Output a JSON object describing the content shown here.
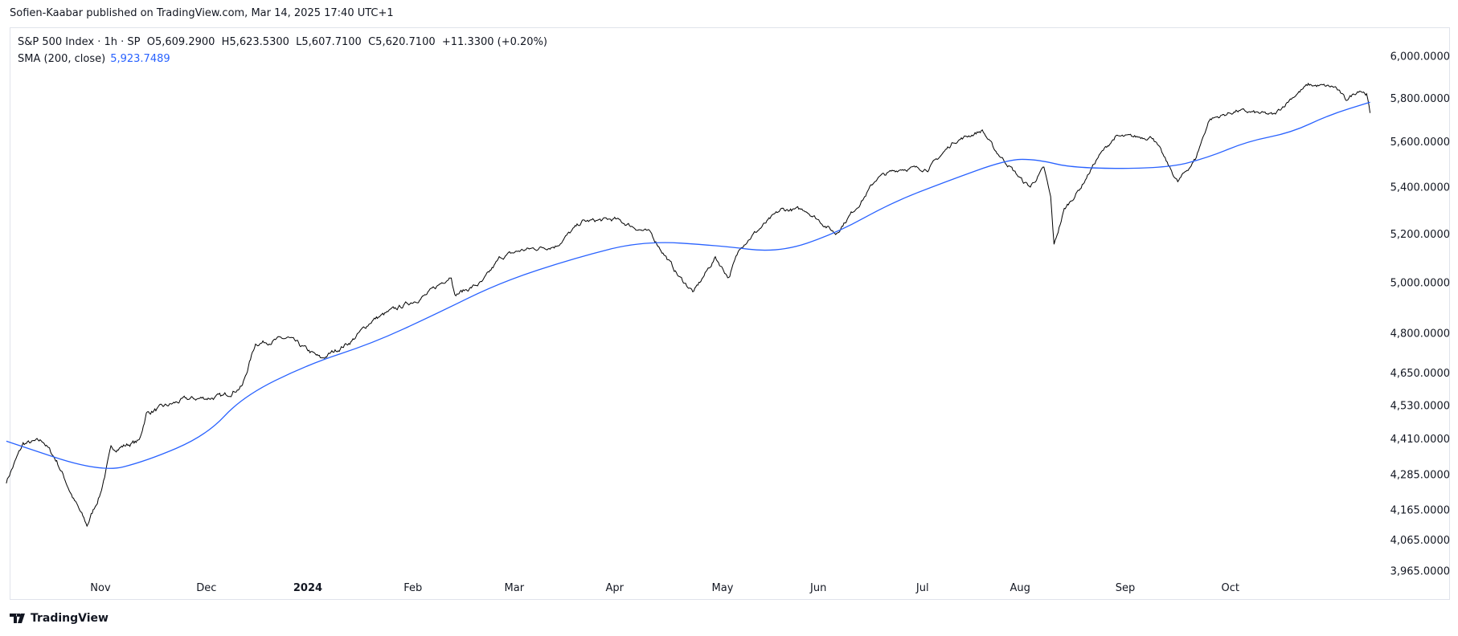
{
  "publisher_line": "Sofien-Kaabar published on TradingView.com, Mar 14, 2025 17:40 UTC+1",
  "legend": {
    "symbol_line": "S&P 500 Index · 1h · SP  O5,609.2900  H5,623.5300  L5,607.7100  C5,620.7100  +11.3300 (+0.20%)",
    "sma_label": "SMA (200, close)",
    "sma_value": "5,923.7489"
  },
  "brand": "TradingView",
  "colors": {
    "price": "#000000",
    "sma": "#2962ff",
    "border": "#e0e3eb"
  },
  "chart_data": {
    "type": "line",
    "scale": "log",
    "grid": false,
    "ylim": [
      3965,
      6000
    ],
    "y_ticks": [
      "6,000.0000",
      "5,800.0000",
      "5,600.0000",
      "5,400.0000",
      "5,200.0000",
      "5,000.0000",
      "4,800.0000",
      "4,650.0000",
      "4,530.0000",
      "4,410.0000",
      "4,285.0000",
      "4,165.0000",
      "4,065.0000",
      "3,965.0000"
    ],
    "x_ticks": [
      {
        "label": "Nov",
        "date": "2023-11-01"
      },
      {
        "label": "Dec",
        "date": "2023-12-01"
      },
      {
        "label": "2024",
        "date": "2024-01-01",
        "year": true
      },
      {
        "label": "Feb",
        "date": "2024-02-01"
      },
      {
        "label": "Mar",
        "date": "2024-03-01"
      },
      {
        "label": "Apr",
        "date": "2024-04-01"
      },
      {
        "label": "May",
        "date": "2024-05-01"
      },
      {
        "label": "Jun",
        "date": "2024-06-01"
      },
      {
        "label": "Jul",
        "date": "2024-07-01"
      },
      {
        "label": "Aug",
        "date": "2024-08-01"
      },
      {
        "label": "Sep",
        "date": "2024-09-01"
      },
      {
        "label": "Oct",
        "date": "2024-10-01"
      }
    ],
    "series": [
      {
        "name": "S&P 500 Index",
        "points": [
          [
            "2023-10-04",
            4260
          ],
          [
            "2023-10-09",
            4390
          ],
          [
            "2023-10-15",
            4400
          ],
          [
            "2023-10-19",
            4330
          ],
          [
            "2023-10-24",
            4200
          ],
          [
            "2023-10-28",
            4110
          ],
          [
            "2023-11-01",
            4220
          ],
          [
            "2023-11-04",
            4370
          ],
          [
            "2023-11-12",
            4400
          ],
          [
            "2023-11-14",
            4500
          ],
          [
            "2023-11-25",
            4550
          ],
          [
            "2023-12-06",
            4560
          ],
          [
            "2023-12-12",
            4600
          ],
          [
            "2023-12-16",
            4760
          ],
          [
            "2023-12-26",
            4780
          ],
          [
            "2024-01-05",
            4700
          ],
          [
            "2024-01-14",
            4770
          ],
          [
            "2024-01-20",
            4850
          ],
          [
            "2024-01-28",
            4900
          ],
          [
            "2024-02-05",
            4950
          ],
          [
            "2024-02-12",
            5030
          ],
          [
            "2024-02-13",
            4950
          ],
          [
            "2024-02-21",
            5000
          ],
          [
            "2024-02-26",
            5100
          ],
          [
            "2024-03-03",
            5130
          ],
          [
            "2024-03-14",
            5150
          ],
          [
            "2024-03-22",
            5250
          ],
          [
            "2024-04-01",
            5260
          ],
          [
            "2024-04-11",
            5200
          ],
          [
            "2024-04-19",
            5020
          ],
          [
            "2024-04-23",
            4960
          ],
          [
            "2024-04-29",
            5100
          ],
          [
            "2024-05-03",
            5020
          ],
          [
            "2024-05-07",
            5150
          ],
          [
            "2024-05-13",
            5220
          ],
          [
            "2024-05-20",
            5300
          ],
          [
            "2024-05-28",
            5300
          ],
          [
            "2024-06-06",
            5200
          ],
          [
            "2024-06-14",
            5350
          ],
          [
            "2024-06-18",
            5440
          ],
          [
            "2024-06-25",
            5480
          ],
          [
            "2024-07-03",
            5480
          ],
          [
            "2024-07-11",
            5600
          ],
          [
            "2024-07-20",
            5650
          ],
          [
            "2024-07-24",
            5560
          ],
          [
            "2024-07-28",
            5500
          ],
          [
            "2024-08-02",
            5420
          ],
          [
            "2024-08-04",
            5400
          ],
          [
            "2024-08-08",
            5480
          ],
          [
            "2024-08-10",
            5350
          ],
          [
            "2024-08-11",
            5150
          ],
          [
            "2024-08-14",
            5300
          ],
          [
            "2024-08-19",
            5400
          ],
          [
            "2024-08-24",
            5530
          ],
          [
            "2024-08-29",
            5620
          ],
          [
            "2024-09-09",
            5620
          ],
          [
            "2024-09-13",
            5500
          ],
          [
            "2024-09-16",
            5420
          ],
          [
            "2024-09-21",
            5520
          ],
          [
            "2024-09-25",
            5700
          ],
          [
            "2024-10-03",
            5740
          ],
          [
            "2024-10-14",
            5720
          ],
          [
            "2024-10-19",
            5800
          ],
          [
            "2024-10-24",
            5860
          ],
          [
            "2024-11-01",
            5850
          ],
          [
            "2024-11-04",
            5790
          ],
          [
            "2024-11-08",
            5840
          ],
          [
            "2024-11-10",
            5820
          ],
          [
            "2024-11-11",
            5730
          ]
        ]
      },
      {
        "name": "SMA (200, close)",
        "points": [
          [
            "2023-10-04",
            4400
          ],
          [
            "2023-11-01",
            4290
          ],
          [
            "2023-11-14",
            4330
          ],
          [
            "2023-12-01",
            4420
          ],
          [
            "2023-12-12",
            4560
          ],
          [
            "2024-01-01",
            4680
          ],
          [
            "2024-01-20",
            4760
          ],
          [
            "2024-02-07",
            4870
          ],
          [
            "2024-02-26",
            5000
          ],
          [
            "2024-03-20",
            5100
          ],
          [
            "2024-04-09",
            5170
          ],
          [
            "2024-04-30",
            5150
          ],
          [
            "2024-05-19",
            5120
          ],
          [
            "2024-06-06",
            5200
          ],
          [
            "2024-06-22",
            5330
          ],
          [
            "2024-07-08",
            5420
          ],
          [
            "2024-07-28",
            5520
          ],
          [
            "2024-08-06",
            5520
          ],
          [
            "2024-08-17",
            5480
          ],
          [
            "2024-09-13",
            5480
          ],
          [
            "2024-09-25",
            5530
          ],
          [
            "2024-10-06",
            5600
          ],
          [
            "2024-10-19",
            5640
          ],
          [
            "2024-10-30",
            5720
          ],
          [
            "2024-11-11",
            5780
          ]
        ]
      }
    ]
  }
}
